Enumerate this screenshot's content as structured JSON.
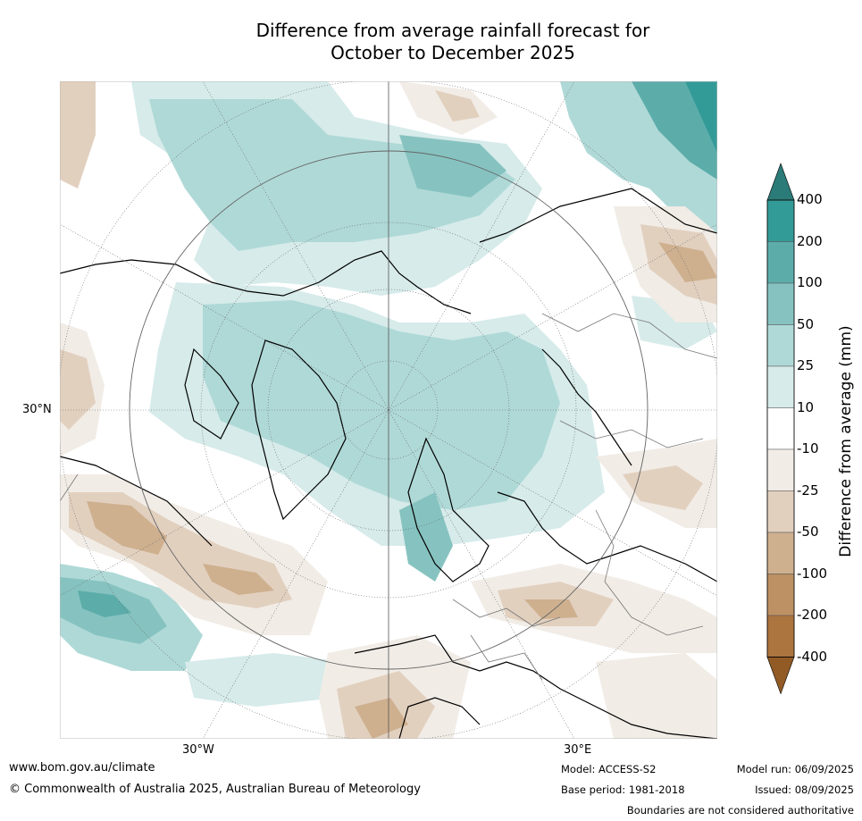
{
  "title": {
    "line1": "Difference from average rainfall forecast for",
    "line2": "October to December 2025"
  },
  "map": {
    "projection": "north-polar-stereographic",
    "lat_label": "30°N",
    "lon_labels": {
      "west": "30°W",
      "east": "30°E"
    }
  },
  "colorbar": {
    "title": "Difference from average (mm)",
    "ticks": [
      "400",
      "200",
      "100",
      "50",
      "25",
      "10",
      "-10",
      "-25",
      "-50",
      "-100",
      "-200",
      "-400"
    ],
    "colors": [
      "#2b7b78",
      "#339b97",
      "#5cadaa",
      "#86c3c0",
      "#afd9d7",
      "#d6ebea",
      "#ffffff",
      "#f1ece6",
      "#e2d0bf",
      "#ceb08f",
      "#bd9164",
      "#ac743e",
      "#925b26"
    ]
  },
  "footer": {
    "site": "www.bom.gov.au/climate",
    "copyright": "© Commonwealth of Australia 2025, Australian Bureau of Meteorology",
    "model": "Model: ACCESS-S2",
    "base_period": "Base period: 1981-2018",
    "model_run": "Model run: 06/09/2025",
    "issued": "Issued: 08/09/2025",
    "disclaimer": "Boundaries are not considered authoritative"
  }
}
